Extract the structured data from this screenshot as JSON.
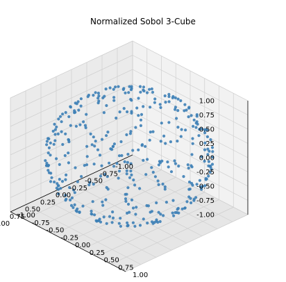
{
  "chart_data": {
    "type": "scatter",
    "projection": "3d",
    "title": "Normalized Sobol 3-Cube",
    "xlabel": "",
    "ylabel": "",
    "zlabel": "",
    "xlim": [
      -1.0,
      1.0
    ],
    "ylim": [
      -1.0,
      1.0
    ],
    "zlim": [
      -1.0,
      1.0
    ],
    "x_ticks": [
      "-1.00",
      "-0.75",
      "-0.50",
      "-0.25",
      "0.00",
      "0.25",
      "0.50",
      "0.75",
      "1.00"
    ],
    "y_ticks": [
      "-1.00",
      "-0.75",
      "-0.50",
      "-0.25",
      "0.00",
      "0.25",
      "0.50",
      "0.75",
      "1.00"
    ],
    "z_ticks": [
      "-1.00",
      "-0.75",
      "-0.50",
      "-0.25",
      "0.00",
      "0.25",
      "0.50",
      "0.75",
      "1.00"
    ],
    "grid": true,
    "marker_color": "#3d7fb6",
    "pane_color": "#f2f2f2",
    "point_count": 400,
    "points": "sobol points in [0,1]^3 mapped to [-1,1]^3 and normalized to the unit sphere"
  }
}
